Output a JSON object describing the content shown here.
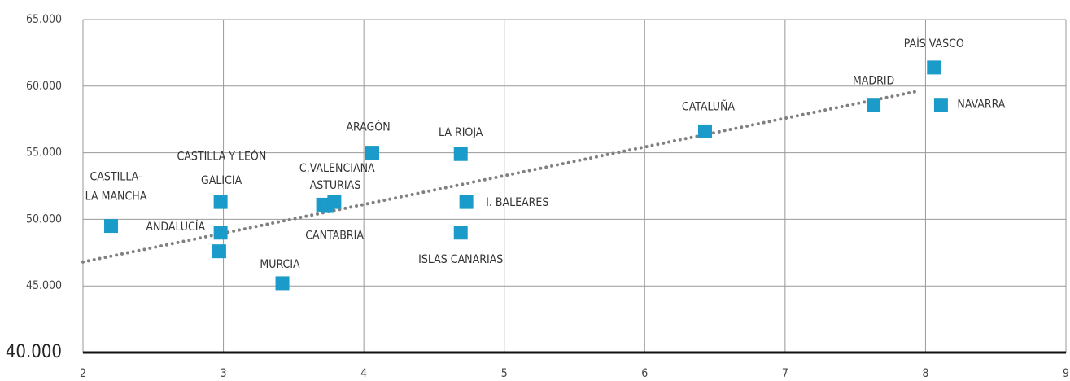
{
  "chart_data": {
    "type": "scatter",
    "x": [
      2.2,
      2.97,
      2.98,
      2.98,
      3.42,
      3.71,
      3.74,
      3.79,
      4.06,
      4.69,
      4.73,
      4.69,
      6.43,
      7.63,
      8.06,
      8.11
    ],
    "values": [
      49500,
      47600,
      51300,
      49000,
      45200,
      51100,
      51000,
      51300,
      55000,
      54900,
      51300,
      49000,
      56600,
      58600,
      61400,
      58600
    ],
    "labels": [
      [
        "CASTILLA-",
        "LA MANCHA"
      ],
      "CASTILLA Y LEÓN",
      "GALICIA",
      "ANDALUCÍA",
      "MURCIA",
      "CANTABRIA",
      "C.VALENCIANA",
      "ASTURIAS",
      "ARAGÓN",
      "LA RIOJA",
      "I. BALEARES",
      "ISLAS CANARIAS",
      "CATALUÑA",
      "MADRID",
      "PAÍS VASCO",
      "NAVARRA"
    ],
    "color": "#1b9bc9",
    "trendline": {
      "x": [
        2,
        7.96
      ],
      "values": [
        46800,
        59660
      ],
      "color": "#808080"
    },
    "xlim": [
      2,
      9
    ],
    "xticks": [
      2,
      3,
      4,
      5,
      6,
      7,
      8,
      9
    ],
    "ylim": [
      40000,
      65000
    ],
    "yticks": [
      {
        "value": 40000,
        "label": "40.000"
      },
      {
        "value": 45000,
        "label": "45.000"
      },
      {
        "value": 50000,
        "label": "50.000"
      },
      {
        "value": 55000,
        "label": "55.000"
      },
      {
        "value": 60000,
        "label": "60.000"
      },
      {
        "value": 65000,
        "label": "65.000"
      }
    ],
    "grid": true
  }
}
